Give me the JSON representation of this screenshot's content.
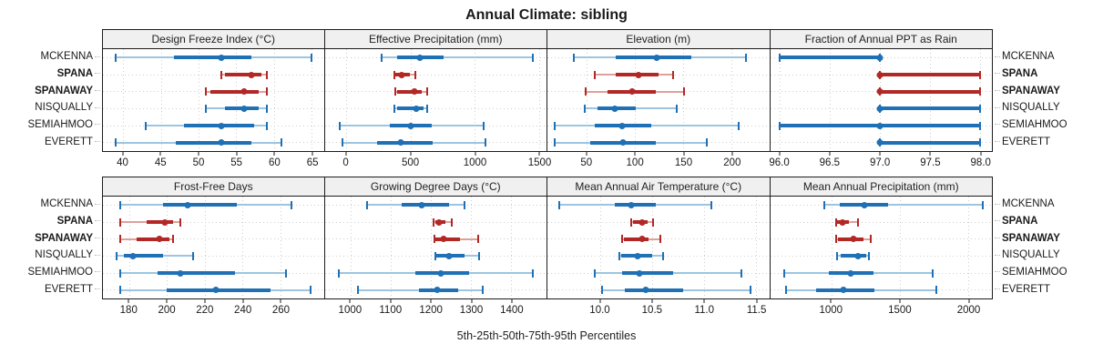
{
  "title": "Annual Climate: sibling",
  "footer": "5th-25th-50th-75th-95th Percentiles",
  "colors": {
    "blue": "#1f70b4",
    "blue_light": "#9dc5e1",
    "red": "#b22826",
    "red_light": "#dfa09c",
    "strip_bg": "#f0f0f0",
    "grid": "#cecece",
    "border": "#1c1c1c"
  },
  "stations": [
    {
      "name": "MCKENNA",
      "bold": false,
      "color": "blue"
    },
    {
      "name": "SPANA",
      "bold": true,
      "color": "red"
    },
    {
      "name": "SPANAWAY",
      "bold": true,
      "color": "red"
    },
    {
      "name": "NISQUALLY",
      "bold": false,
      "color": "blue"
    },
    {
      "name": "SEMIAHMOO",
      "bold": false,
      "color": "blue"
    },
    {
      "name": "EVERETT",
      "bold": false,
      "color": "blue"
    }
  ],
  "chart_data": {
    "type": "interval-dotplot",
    "description": "Trellis of 5th-25th-50th-75th-95th percentile intervals per station; dot = median",
    "percentile_order": [
      "p5",
      "p25",
      "p50",
      "p75",
      "p95"
    ],
    "legend_position": "none",
    "grid": "dotted",
    "panels": [
      {
        "row": 0,
        "title": "Design Freeze Index (°C)",
        "xlim": [
          37.3,
          66.6
        ],
        "ticks": [
          40,
          45,
          50,
          55,
          60,
          65
        ],
        "tick_labels": [
          "40",
          "45",
          "50",
          "55",
          "60",
          "65"
        ],
        "series": [
          {
            "station": "MCKENNA",
            "values": [
              39,
              46.7,
              53,
              57,
              65
            ]
          },
          {
            "station": "SPANA",
            "values": [
              53,
              53.5,
              57,
              58.3,
              59
            ]
          },
          {
            "station": "SPANAWAY",
            "values": [
              51,
              51.5,
              56,
              58,
              59
            ]
          },
          {
            "station": "NISQUALLY",
            "values": [
              51,
              53.5,
              56,
              58,
              59
            ]
          },
          {
            "station": "SEMIAHMOO",
            "values": [
              43,
              48,
              53,
              57.4,
              59
            ]
          },
          {
            "station": "EVERETT",
            "values": [
              39,
              47,
              53,
              57,
              61
            ]
          }
        ]
      },
      {
        "row": 0,
        "title": "Effective Precipitation (mm)",
        "xlim": [
          -170,
          1560
        ],
        "ticks": [
          0,
          500,
          1000,
          1500
        ],
        "tick_labels": [
          "0",
          "500",
          "1000",
          "1500"
        ],
        "series": [
          {
            "station": "MCKENNA",
            "values": [
              277,
              395,
              570,
              756,
              1453
            ]
          },
          {
            "station": "SPANA",
            "values": [
              372,
              381,
              428,
              493,
              535
            ]
          },
          {
            "station": "SPANAWAY",
            "values": [
              381,
              393,
              533,
              586,
              632
            ]
          },
          {
            "station": "NISQUALLY",
            "values": [
              377,
              395,
              544,
              598,
              628
            ]
          },
          {
            "station": "SEMIAHMOO",
            "values": [
              -53,
              337,
              498,
              667,
              1070
            ]
          },
          {
            "station": "EVERETT",
            "values": [
              -30,
              237,
              423,
              674,
              1086
            ]
          }
        ]
      },
      {
        "row": 0,
        "title": "Elevation (m)",
        "xlim": [
          9,
          239
        ],
        "ticks": [
          50,
          100,
          150,
          200
        ],
        "tick_labels": [
          "50",
          "100",
          "150",
          "200"
        ],
        "series": [
          {
            "station": "MCKENNA",
            "values": [
              36,
              80,
              122,
              158,
              215
            ]
          },
          {
            "station": "SPANA",
            "values": [
              58,
              80,
              103,
              124,
              139
            ]
          },
          {
            "station": "SPANAWAY",
            "values": [
              49,
              71,
              97,
              121,
              151
            ]
          },
          {
            "station": "NISQUALLY",
            "values": [
              48,
              61,
              79,
              101,
              143
            ]
          },
          {
            "station": "SEMIAHMOO",
            "values": [
              17,
              58,
              86,
              117,
              207
            ]
          },
          {
            "station": "EVERETT",
            "values": [
              17,
              53,
              87,
              121,
              174
            ]
          }
        ]
      },
      {
        "row": 0,
        "title": "Fraction of Annual PPT as Rain",
        "xlim": [
          95.9,
          98.12
        ],
        "ticks": [
          96.0,
          96.5,
          97.0,
          97.5,
          98.0
        ],
        "tick_labels": [
          "96.0",
          "96.5",
          "97.0",
          "97.5",
          "98.0"
        ],
        "series": [
          {
            "station": "MCKENNA",
            "values": [
              96,
              96,
              97,
              97,
              97
            ]
          },
          {
            "station": "SPANA",
            "values": [
              97,
              97,
              97,
              98,
              98
            ]
          },
          {
            "station": "SPANAWAY",
            "values": [
              97,
              97,
              97,
              98,
              98
            ]
          },
          {
            "station": "NISQUALLY",
            "values": [
              97,
              97,
              97,
              98,
              98
            ]
          },
          {
            "station": "SEMIAHMOO",
            "values": [
              96,
              96,
              97,
              98,
              98
            ]
          },
          {
            "station": "EVERETT",
            "values": [
              97,
              97,
              97,
              98,
              98
            ]
          }
        ]
      },
      {
        "row": 1,
        "title": "Frost-Free Days",
        "xlim": [
          166,
          283
        ],
        "ticks": [
          180,
          200,
          220,
          240,
          260
        ],
        "tick_labels": [
          "180",
          "200",
          "220",
          "240",
          "260"
        ],
        "series": [
          {
            "station": "MCKENNA",
            "values": [
              175,
              198,
              211,
              237,
              266
            ]
          },
          {
            "station": "SPANA",
            "values": [
              175,
              189,
              199,
              203,
              207
            ]
          },
          {
            "station": "SPANAWAY",
            "values": [
              175,
              184,
              196,
              201,
              203
            ]
          },
          {
            "station": "NISQUALLY",
            "values": [
              173,
              177,
              182,
              198,
              214
            ]
          },
          {
            "station": "SEMIAHMOO",
            "values": [
              175,
              195,
              207,
              236,
              263
            ]
          },
          {
            "station": "EVERETT",
            "values": [
              175,
              200,
              226,
              255,
              276
            ]
          }
        ]
      },
      {
        "row": 1,
        "title": "Growing Degree Days (°C)",
        "xlim": [
          935,
          1488
        ],
        "ticks": [
          1000,
          1100,
          1200,
          1300,
          1400
        ],
        "tick_labels": [
          "1000",
          "1100",
          "1200",
          "1300",
          "1400"
        ],
        "series": [
          {
            "station": "MCKENNA",
            "values": [
              1041,
              1126,
              1177,
              1246,
              1283
            ]
          },
          {
            "station": "SPANA",
            "values": [
              1206,
              1210,
              1219,
              1237,
              1252
            ]
          },
          {
            "station": "SPANAWAY",
            "values": [
              1209,
              1212,
              1231,
              1272,
              1317
            ]
          },
          {
            "station": "NISQUALLY",
            "values": [
              1210,
              1214,
              1244,
              1283,
              1319
            ]
          },
          {
            "station": "SEMIAHMOO",
            "values": [
              970,
              1161,
              1224,
              1296,
              1453
            ]
          },
          {
            "station": "EVERETT",
            "values": [
              1018,
              1170,
              1215,
              1268,
              1329
            ]
          }
        ]
      },
      {
        "row": 1,
        "title": "Mean Annual Air Temperature (°C)",
        "xlim": [
          9.49,
          11.63
        ],
        "ticks": [
          10.0,
          10.5,
          11.0,
          11.5
        ],
        "tick_labels": [
          "10.0",
          "10.5",
          "11.0",
          "11.5"
        ],
        "series": [
          {
            "station": "MCKENNA",
            "values": [
              9.6,
              10.14,
              10.3,
              10.54,
              11.07
            ]
          },
          {
            "station": "SPANA",
            "values": [
              10.3,
              10.32,
              10.4,
              10.46,
              10.51
            ]
          },
          {
            "station": "SPANAWAY",
            "values": [
              10.21,
              10.23,
              10.4,
              10.47,
              10.58
            ]
          },
          {
            "station": "NISQUALLY",
            "values": [
              10.18,
              10.2,
              10.36,
              10.5,
              10.61
            ]
          },
          {
            "station": "SEMIAHMOO",
            "values": [
              9.95,
              10.21,
              10.38,
              10.7,
              11.36
            ]
          },
          {
            "station": "EVERETT",
            "values": [
              10.02,
              10.24,
              10.44,
              10.8,
              11.45
            ]
          }
        ]
      },
      {
        "row": 1,
        "title": "Mean Annual Precipitation (mm)",
        "xlim": [
          552,
          2175
        ],
        "ticks": [
          1000,
          1500,
          2000
        ],
        "tick_labels": [
          "1000",
          "1500",
          "2000"
        ],
        "series": [
          {
            "station": "MCKENNA",
            "values": [
              948,
              1061,
              1242,
              1412,
              2108
            ]
          },
          {
            "station": "SPANA",
            "values": [
              1032,
              1040,
              1080,
              1130,
              1197
            ]
          },
          {
            "station": "SPANAWAY",
            "values": [
              1038,
              1050,
              1163,
              1235,
              1287
            ]
          },
          {
            "station": "NISQUALLY",
            "values": [
              1043,
              1068,
              1192,
              1253,
              1276
            ]
          },
          {
            "station": "SEMIAHMOO",
            "values": [
              654,
              982,
              1140,
              1310,
              1740
            ]
          },
          {
            "station": "EVERETT",
            "values": [
              670,
              887,
              1090,
              1317,
              1769
            ]
          }
        ]
      }
    ]
  }
}
